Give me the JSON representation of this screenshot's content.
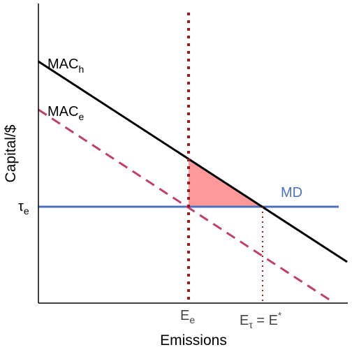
{
  "labels": {
    "mac_h_main": "MAC",
    "mac_h_sub": "h",
    "mac_e_main": "MAC",
    "mac_e_sub": "e",
    "md": "MD",
    "tau_main": "τ",
    "tau_sub": "e",
    "e_e_main": "E",
    "e_e_sub": "e",
    "e_tau_main": "E",
    "e_tau_sub": "τ",
    "e_tau_eq": " = E",
    "e_star": "*",
    "x_axis": "Emissions",
    "y_axis": "Capital/$"
  },
  "colors": {
    "mac_h": "#000000",
    "mac_e": "#c0406a",
    "md": "#4a72c0",
    "md_label": "#4a72c0",
    "e_e_line": "#9b1c1c",
    "e_tau_line": "#9b1c1c",
    "shaded_area": "#ff9999",
    "axis": "#000000"
  },
  "line_styles": {
    "mac_h": "solid",
    "mac_e": "dashed",
    "md": "solid",
    "e_e_line": "dotted-heavy",
    "e_tau_line": "dotted-light"
  }
}
